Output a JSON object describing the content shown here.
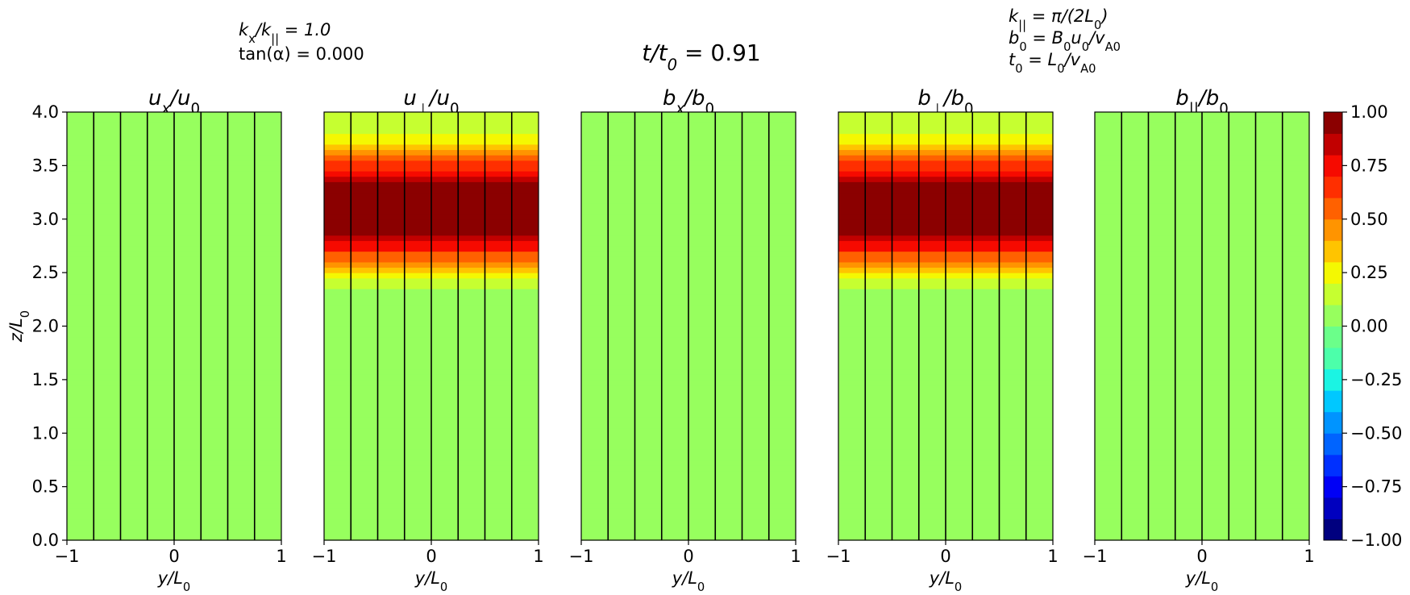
{
  "figure": {
    "suptitle": {
      "main": "t/t",
      "sub": "0",
      "eq": " = 0.91"
    },
    "annotation_left": [
      {
        "parts": [
          "k",
          "x",
          "/k",
          "||",
          " = 1.0"
        ]
      },
      {
        "parts": [
          "tan(α) = 0.000"
        ]
      }
    ],
    "annotation_right": [
      {
        "parts": [
          "k",
          "||",
          " = π/(2L",
          "0",
          ")"
        ]
      },
      {
        "parts": [
          "b",
          "0",
          " = B",
          "0",
          "u",
          "0",
          "/v",
          "A0"
        ]
      },
      {
        "parts": [
          "t",
          "0",
          " = L",
          "0",
          "/v",
          "A0"
        ]
      }
    ]
  },
  "colors": {
    "colormap": [
      "#00007f",
      "#0000bf",
      "#0000f6",
      "#0030ff",
      "#0064ff",
      "#0094ff",
      "#00c8ff",
      "#1bf4e3",
      "#4cffaa",
      "#6bff8a",
      "#97ff5e",
      "#c6ff30",
      "#f4f802",
      "#ffc400",
      "#ff9400",
      "#ff6100",
      "#ff2f00",
      "#f60a00",
      "#c10000",
      "#8b0000"
    ],
    "background": "#ffffff",
    "grid_line": "#000000"
  },
  "chart_data": {
    "type": "heatmap",
    "x_label": {
      "main": "y/L",
      "sub": "0"
    },
    "y_label": {
      "main": "z/L",
      "sub": "0"
    },
    "xlim": [
      -1,
      1
    ],
    "ylim": [
      0,
      4.0
    ],
    "x_ticks": [
      "−1",
      "0",
      "1"
    ],
    "x_tick_values": [
      -1,
      0,
      1
    ],
    "y_ticks": [
      "0.0",
      "0.5",
      "1.0",
      "1.5",
      "2.0",
      "2.5",
      "3.0",
      "3.5",
      "4.0"
    ],
    "y_tick_values": [
      0,
      0.5,
      1.0,
      1.5,
      2.0,
      2.5,
      3.0,
      3.5,
      4.0
    ],
    "vertical_field_lines_y": [
      -0.75,
      -0.5,
      -0.25,
      0,
      0.25,
      0.5,
      0.75
    ],
    "panels": [
      {
        "title_main": "u",
        "title_sub": "x",
        "title_rest": "/u",
        "title_sub2": "0",
        "profile": "zero"
      },
      {
        "title_main": "u",
        "title_sub": "⊥",
        "title_rest": "/u",
        "title_sub2": "0",
        "profile": "pulse"
      },
      {
        "title_main": "b",
        "title_sub": "x",
        "title_rest": "/b",
        "title_sub2": "0",
        "profile": "zero"
      },
      {
        "title_main": "b",
        "title_sub": "⊥",
        "title_rest": "/b",
        "title_sub2": "0",
        "profile": "pulse"
      },
      {
        "title_main": "b",
        "title_sub": "||",
        "title_rest": "/b",
        "title_sub2": "0",
        "profile": "zero"
      }
    ],
    "pulse_profile": {
      "description_z_vs_value": [
        [
          0.0,
          0.04
        ],
        [
          1.2,
          0.04
        ],
        [
          1.2,
          0.06
        ],
        [
          2.3,
          0.06
        ],
        [
          2.45,
          0.2
        ],
        [
          2.6,
          0.45
        ],
        [
          2.75,
          0.75
        ],
        [
          2.9,
          0.95
        ],
        [
          3.0,
          1.0
        ],
        [
          3.25,
          1.0
        ],
        [
          3.35,
          0.9
        ],
        [
          3.5,
          0.65
        ],
        [
          3.65,
          0.4
        ],
        [
          3.8,
          0.2
        ],
        [
          4.0,
          0.1
        ]
      ]
    },
    "colorbar": {
      "vmin": -1.0,
      "vmax": 1.0,
      "ticks": [
        "−1.00",
        "−0.75",
        "−0.50",
        "−0.25",
        "0.00",
        "0.25",
        "0.50",
        "0.75",
        "1.00"
      ],
      "tick_values": [
        -1.0,
        -0.75,
        -0.5,
        -0.25,
        0.0,
        0.25,
        0.5,
        0.75,
        1.0
      ]
    }
  }
}
